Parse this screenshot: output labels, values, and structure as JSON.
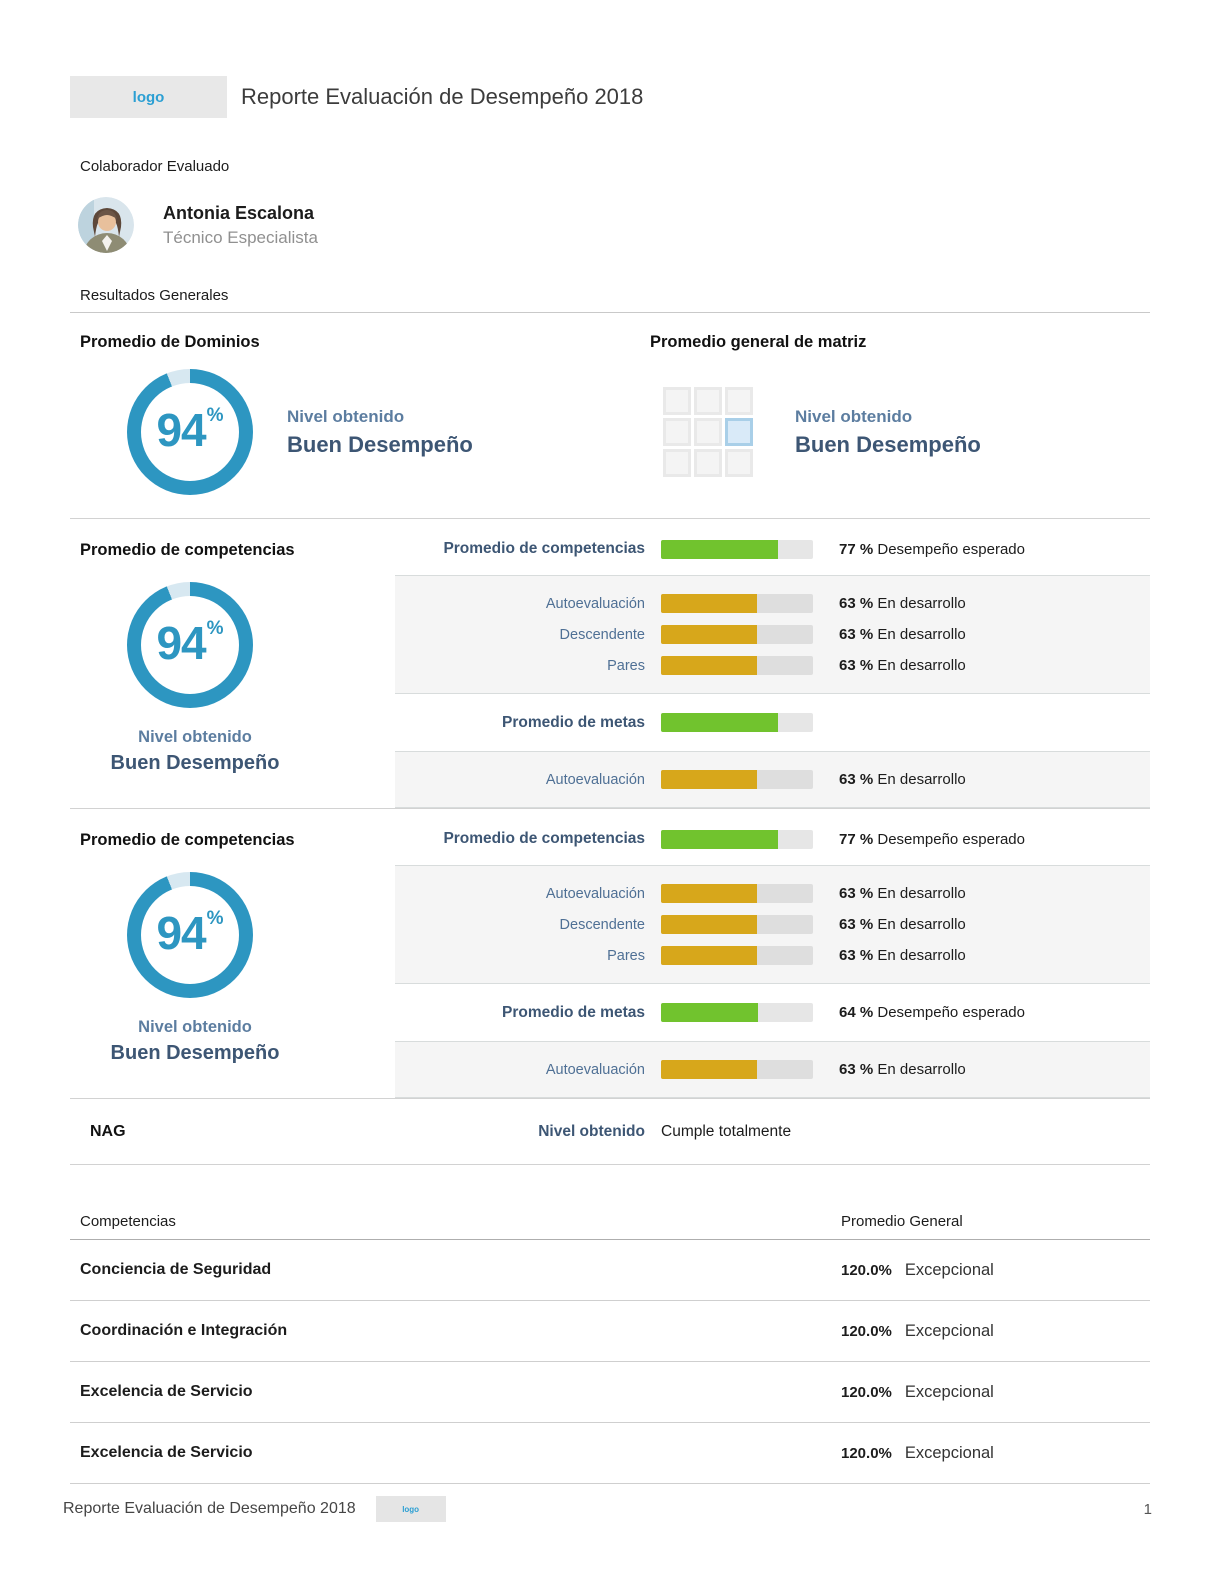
{
  "header": {
    "logo_text": "logo",
    "title": "Reporte Evaluación de Desempeño 2018"
  },
  "employee": {
    "section_label": "Colaborador Evaluado",
    "name": "Antonia Escalona",
    "role": "Técnico Especialista"
  },
  "results_label": "Resultados Generales",
  "colors": {
    "donut_fill": "#2d96c1",
    "donut_rest": "#d7e8f1",
    "navy": "#3d5674",
    "slate": "#5c7da0",
    "green": "#71c32e",
    "yellow": "#d7a71b"
  },
  "domains": {
    "heading": "Promedio de Dominios",
    "value": 94,
    "unit": "%",
    "level_label": "Nivel obtenido",
    "level": "Buen Desempeño"
  },
  "matrix": {
    "heading": "Promedio general de matriz",
    "rows": 3,
    "cols": 3,
    "highlight_row": 2,
    "highlight_col": 3,
    "level_label": "Nivel obtenido",
    "level": "Buen Desempeño"
  },
  "sections": [
    {
      "heading": "Promedio de competencias",
      "gauge_value": 94,
      "gauge_unit": "%",
      "level_label": "Nivel obtenido",
      "level": "Buen Desempeño",
      "rows": [
        {
          "kind": "primary",
          "label": "Promedio de competencias",
          "value": 77,
          "value_label": "77 %",
          "note": "Desempeño esperado",
          "color": "green"
        },
        {
          "kind": "group",
          "items": [
            {
              "label": "Autoevaluación",
              "value": 63,
              "value_label": "63 %",
              "note": "En desarrollo",
              "color": "yellow"
            },
            {
              "label": "Descendente",
              "value": 63,
              "value_label": "63 %",
              "note": "En desarrollo",
              "color": "yellow"
            },
            {
              "label": "Pares",
              "value": 63,
              "value_label": "63 %",
              "note": "En desarrollo",
              "color": "yellow"
            }
          ]
        },
        {
          "kind": "primary",
          "label": "Promedio de metas",
          "value": 77,
          "value_label": "",
          "note": "",
          "color": "green"
        },
        {
          "kind": "group",
          "items": [
            {
              "label": "Autoevaluación",
              "value": 63,
              "value_label": "63 %",
              "note": "En desarrollo",
              "color": "yellow"
            }
          ]
        }
      ]
    },
    {
      "heading": "Promedio de competencias",
      "gauge_value": 94,
      "gauge_unit": "%",
      "level_label": "Nivel obtenido",
      "level": "Buen Desempeño",
      "rows": [
        {
          "kind": "primary",
          "label": "Promedio de competencias",
          "value": 77,
          "value_label": "77 %",
          "note": "Desempeño esperado",
          "color": "green"
        },
        {
          "kind": "group",
          "items": [
            {
              "label": "Autoevaluación",
              "value": 63,
              "value_label": "63 %",
              "note": "En desarrollo",
              "color": "yellow"
            },
            {
              "label": "Descendente",
              "value": 63,
              "value_label": "63 %",
              "note": "En desarrollo",
              "color": "yellow"
            },
            {
              "label": "Pares",
              "value": 63,
              "value_label": "63 %",
              "note": "En desarrollo",
              "color": "yellow"
            }
          ]
        },
        {
          "kind": "primary",
          "label": "Promedio de metas",
          "value": 64,
          "value_label": "64 %",
          "note": "Desempeño esperado",
          "color": "green"
        },
        {
          "kind": "group",
          "items": [
            {
              "label": "Autoevaluación",
              "value": 63,
              "value_label": "63 %",
              "note": "En desarrollo",
              "color": "yellow"
            }
          ]
        }
      ]
    }
  ],
  "nag": {
    "label": "NAG",
    "level_label": "Nivel obtenido",
    "value": "Cumple totalmente"
  },
  "competencies": {
    "header_left": "Competencias",
    "header_right": "Promedio General",
    "rows": [
      {
        "name": "Conciencia de Seguridad",
        "value": "120.0%",
        "level": "Excepcional"
      },
      {
        "name": "Coordinación e Integración",
        "value": "120.0%",
        "level": "Excepcional"
      },
      {
        "name": "Excelencia de Servicio",
        "value": "120.0%",
        "level": "Excepcional"
      },
      {
        "name": "Excelencia de Servicio",
        "value": "120.0%",
        "level": "Excepcional"
      }
    ]
  },
  "footer": {
    "title": "Reporte Evaluación de Desempeño 2018",
    "logo_text": "logo",
    "page": "1"
  }
}
